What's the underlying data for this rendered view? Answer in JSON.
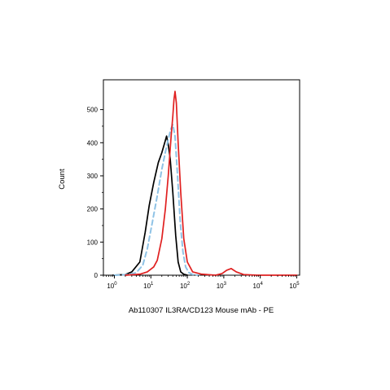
{
  "chart_data": {
    "type": "line",
    "xlabel": "Ab110307 IL3RA/CD123 Mouse mAb - PE",
    "ylabel": "Count",
    "xscale": "log",
    "xlim": [
      0.5,
      120000
    ],
    "ylim": [
      0,
      590
    ],
    "x_ticks": [
      {
        "base": "10",
        "exp": "0",
        "value": 1
      },
      {
        "base": "10",
        "exp": "1",
        "value": 10
      },
      {
        "base": "10",
        "exp": "2",
        "value": 100
      },
      {
        "base": "10",
        "exp": "3",
        "value": 1000
      },
      {
        "base": "10",
        "exp": "4",
        "value": 10000
      },
      {
        "base": "10",
        "exp": "5",
        "value": 100000
      }
    ],
    "y_ticks": [
      {
        "label": "0",
        "value": 0
      },
      {
        "label": "100",
        "value": 100
      },
      {
        "label": "200",
        "value": 200
      },
      {
        "label": "300",
        "value": 300
      },
      {
        "label": "400",
        "value": 400
      },
      {
        "label": "500",
        "value": 500
      }
    ],
    "grid": false,
    "legend": "none",
    "series": [
      {
        "color": "#000000",
        "style": "solid",
        "points": [
          [
            0.9,
            0
          ],
          [
            2,
            2
          ],
          [
            3,
            10
          ],
          [
            5,
            40
          ],
          [
            7,
            130
          ],
          [
            9,
            210
          ],
          [
            12,
            280
          ],
          [
            16,
            340
          ],
          [
            20,
            370
          ],
          [
            24,
            400
          ],
          [
            27,
            420
          ],
          [
            30,
            395
          ],
          [
            34,
            350
          ],
          [
            40,
            250
          ],
          [
            48,
            120
          ],
          [
            56,
            40
          ],
          [
            66,
            10
          ],
          [
            80,
            3
          ],
          [
            100,
            0
          ]
        ]
      },
      {
        "color": "#8fc3e6",
        "style": "dashed",
        "points": [
          [
            1,
            0
          ],
          [
            2.5,
            2
          ],
          [
            4,
            8
          ],
          [
            6,
            30
          ],
          [
            8,
            80
          ],
          [
            11,
            160
          ],
          [
            15,
            240
          ],
          [
            20,
            320
          ],
          [
            26,
            380
          ],
          [
            30,
            410
          ],
          [
            35,
            440
          ],
          [
            40,
            455
          ],
          [
            46,
            420
          ],
          [
            54,
            300
          ],
          [
            64,
            160
          ],
          [
            76,
            70
          ],
          [
            90,
            25
          ],
          [
            110,
            8
          ],
          [
            140,
            2
          ],
          [
            200,
            0
          ]
        ]
      },
      {
        "color": "#e02020",
        "style": "solid",
        "points": [
          [
            2,
            0
          ],
          [
            5,
            3
          ],
          [
            8,
            10
          ],
          [
            12,
            25
          ],
          [
            15,
            45
          ],
          [
            20,
            110
          ],
          [
            25,
            200
          ],
          [
            30,
            300
          ],
          [
            36,
            420
          ],
          [
            40,
            480
          ],
          [
            43,
            530
          ],
          [
            46,
            555
          ],
          [
            50,
            520
          ],
          [
            56,
            400
          ],
          [
            66,
            250
          ],
          [
            80,
            110
          ],
          [
            100,
            40
          ],
          [
            140,
            10
          ],
          [
            250,
            3
          ],
          [
            600,
            0
          ],
          [
            900,
            5
          ],
          [
            1200,
            15
          ],
          [
            1600,
            20
          ],
          [
            2200,
            10
          ],
          [
            3500,
            2
          ],
          [
            8000,
            0
          ],
          [
            100000,
            0
          ]
        ]
      }
    ]
  }
}
